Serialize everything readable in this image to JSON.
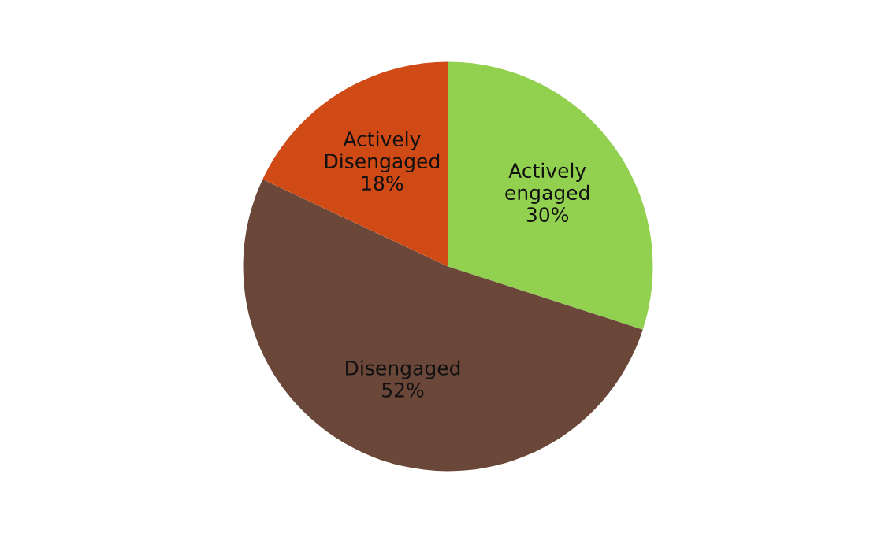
{
  "chart_data": {
    "type": "pie",
    "categories": [
      "Actively engaged",
      "Disengaged",
      "Actively Disengaged"
    ],
    "values": [
      30,
      52,
      18
    ],
    "colors": [
      "#92d050",
      "#6b4739",
      "#d04a16"
    ],
    "value_labels": [
      "30%",
      "52%",
      "18%"
    ],
    "legend": false
  }
}
